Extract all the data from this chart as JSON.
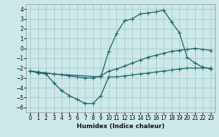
{
  "xlabel": "Humidex (Indice chaleur)",
  "background_color": "#cce8e8",
  "grid_color": "#aacccc",
  "line_color": "#1a6b6b",
  "xlim": [
    -0.5,
    23.5
  ],
  "ylim": [
    -6.5,
    4.5
  ],
  "yticks": [
    -6,
    -5,
    -4,
    -3,
    -2,
    -1,
    0,
    1,
    2,
    3,
    4
  ],
  "xticks": [
    0,
    1,
    2,
    3,
    4,
    5,
    6,
    7,
    8,
    9,
    10,
    11,
    12,
    13,
    14,
    15,
    16,
    17,
    18,
    19,
    20,
    21,
    22,
    23
  ],
  "line1_x": [
    0,
    1,
    2,
    3,
    4,
    5,
    6,
    7,
    8,
    9,
    10,
    11,
    12,
    13,
    14,
    15,
    16,
    17,
    18,
    19,
    20,
    21,
    22,
    23
  ],
  "line1_y": [
    -2.3,
    -2.5,
    -2.6,
    -3.5,
    -4.3,
    -4.8,
    -5.2,
    -5.6,
    -5.6,
    -4.8,
    -2.9,
    -2.9,
    -2.8,
    -2.7,
    -2.6,
    -2.5,
    -2.4,
    -2.3,
    -2.2,
    -2.1,
    -2.0,
    -2.0,
    -2.0,
    -2.0
  ],
  "line2_x": [
    0,
    1,
    2,
    3,
    4,
    5,
    6,
    7,
    8,
    9,
    10,
    11,
    12,
    13,
    14,
    15,
    16,
    17,
    18,
    19,
    20,
    21,
    22,
    23
  ],
  "line2_y": [
    -2.3,
    -2.4,
    -2.5,
    -2.6,
    -2.7,
    -2.8,
    -2.9,
    -3.0,
    -3.0,
    -2.8,
    -2.3,
    -2.1,
    -1.8,
    -1.5,
    -1.2,
    -0.9,
    -0.7,
    -0.5,
    -0.3,
    -0.2,
    -0.1,
    0.0,
    -0.1,
    -0.2
  ],
  "line3_x": [
    0,
    1,
    2,
    3,
    9,
    10,
    11,
    12,
    13,
    14,
    15,
    16,
    17,
    18,
    19,
    20,
    21,
    22,
    23
  ],
  "line3_y": [
    -2.3,
    -2.4,
    -2.5,
    -2.6,
    -2.9,
    -0.3,
    1.5,
    2.8,
    3.0,
    3.5,
    3.6,
    3.7,
    3.9,
    2.7,
    1.6,
    -0.9,
    -1.5,
    -1.9,
    -2.1
  ],
  "marker": "+",
  "markersize": 4,
  "linewidth": 1.0
}
